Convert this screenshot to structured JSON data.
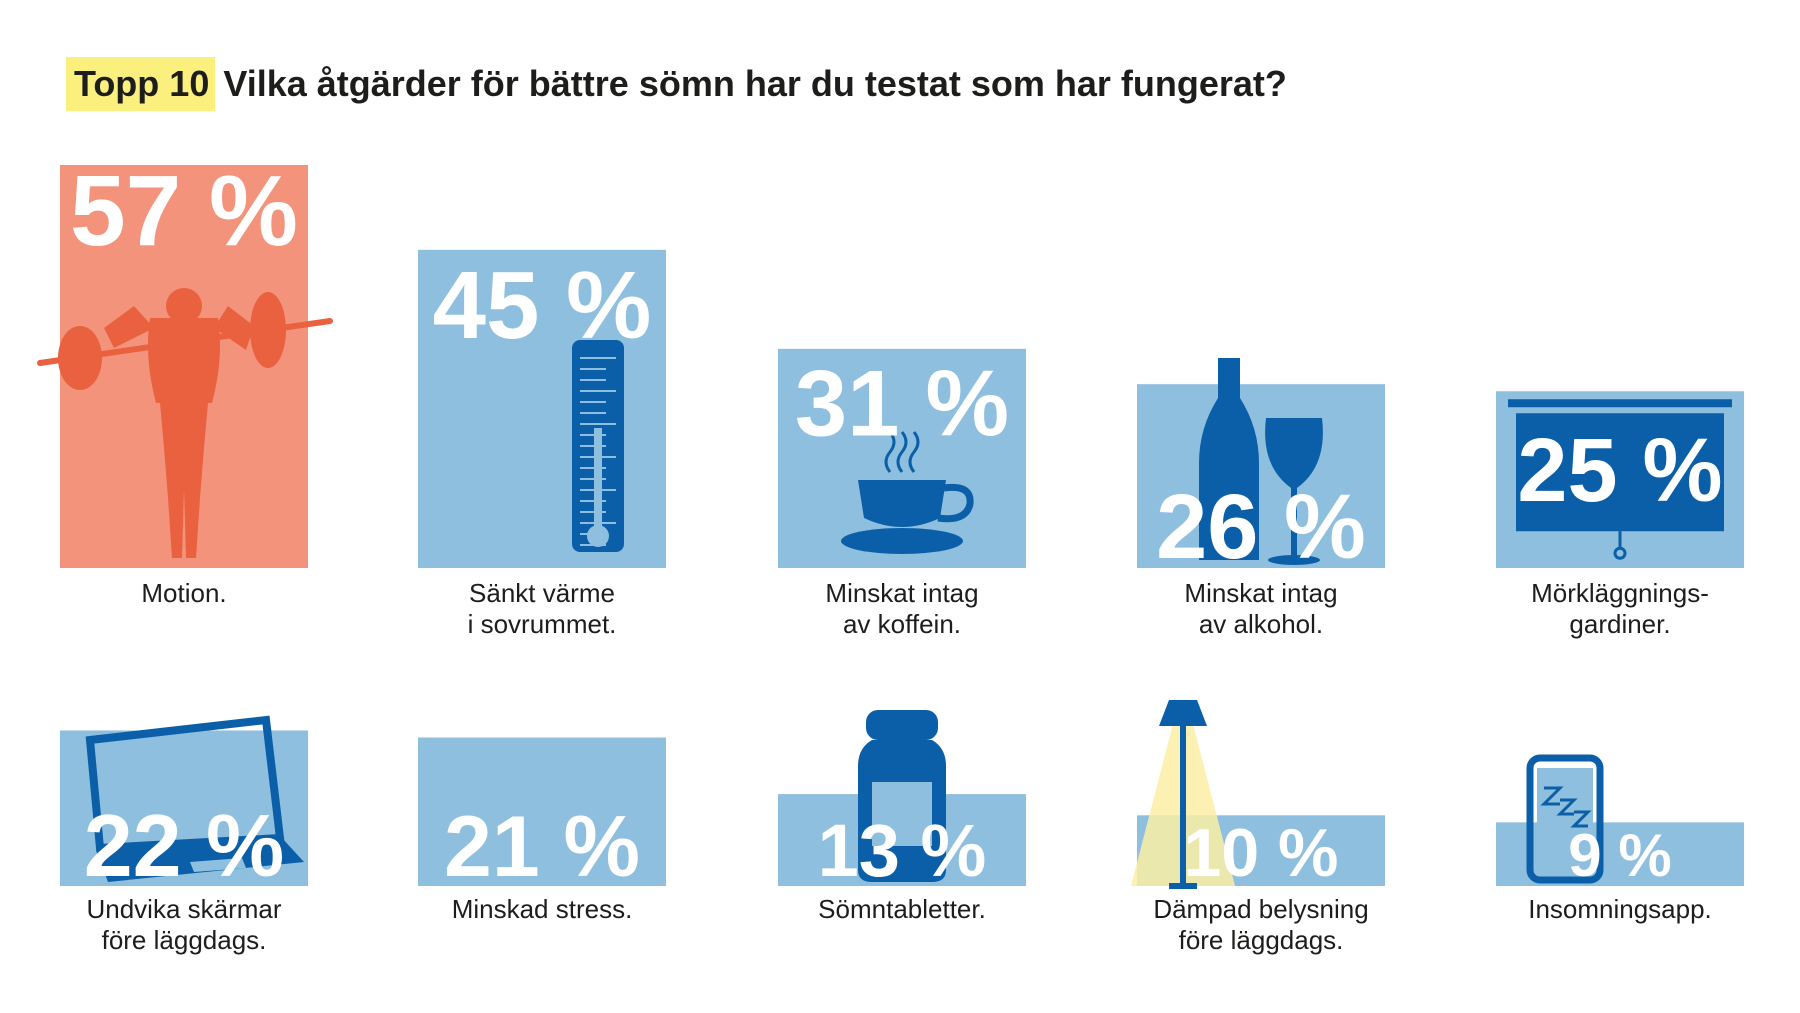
{
  "header": {
    "highlight": "Topp 10",
    "title": "Vilka åtgärder för bättre sömn har du testat som har fungerat?"
  },
  "colors": {
    "accent_bar": "#f4937c",
    "accent_icon": "#e9613f",
    "bar": "#8fbfde",
    "icon": "#0b5fa8",
    "highlight": "#fbef7e",
    "text": "#1d1d1b"
  },
  "chart_data": {
    "type": "bar",
    "categories": [
      "Motion.",
      "Sänkt värme i sovrummet.",
      "Minskat intag av koffein.",
      "Minskat intag av alkohol.",
      "Mörkläggnings-gardiner.",
      "Undvika skärmar före läggdags.",
      "Minskad stress.",
      "Sömntabletter.",
      "Dämpad belysning före läggdags.",
      "Insomningsapp."
    ],
    "values": [
      57,
      45,
      31,
      26,
      25,
      22,
      21,
      13,
      10,
      9
    ],
    "value_labels": [
      "57 %",
      "45 %",
      "31 %",
      "26 %",
      "25 %",
      "22 %",
      "21 %",
      "13 %",
      "10 %",
      "9 %"
    ],
    "caption_lines": [
      [
        "Motion."
      ],
      [
        "Sänkt värme",
        "i sovrummet."
      ],
      [
        "Minskat intag",
        "av koffein."
      ],
      [
        "Minskat intag",
        "av alkohol."
      ],
      [
        "Mörkläggnings-",
        "gardiner."
      ],
      [
        "Undvika skärmar",
        "före läggdags."
      ],
      [
        "Minskad stress."
      ],
      [
        "Sömntabletter."
      ],
      [
        "Dämpad belysning",
        "före läggdags."
      ],
      [
        "Insomningsapp."
      ]
    ],
    "icons": [
      "weightlifter-icon",
      "thermometer-icon",
      "coffee-cup-icon",
      "wine-bottle-glass-icon",
      "blackout-blind-icon",
      "laptop-icon",
      "none",
      "pill-jar-icon",
      "floor-lamp-icon",
      "smartphone-zzz-icon"
    ],
    "ylim": [
      0,
      60
    ],
    "layout": "two rows of five"
  }
}
